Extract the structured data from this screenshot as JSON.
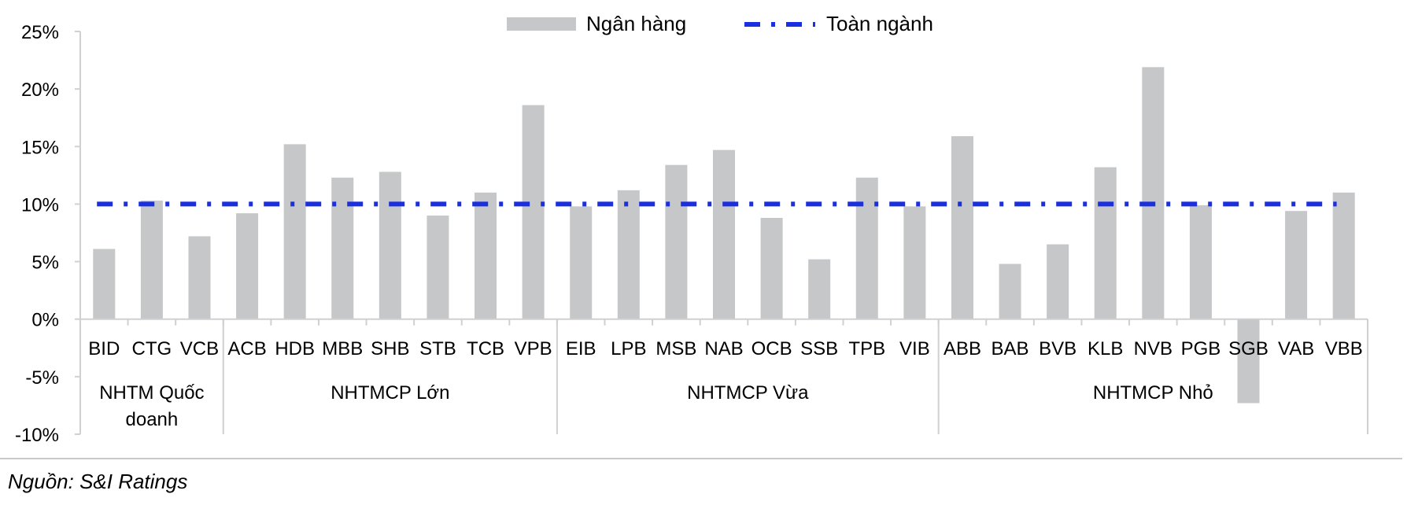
{
  "chart_data": {
    "type": "bar",
    "title": "",
    "xlabel": "",
    "ylabel": "",
    "ylim": [
      -10,
      25
    ],
    "yticks": [
      25,
      20,
      15,
      10,
      5,
      0,
      -5,
      -10
    ],
    "ytick_labels": [
      "25%",
      "20%",
      "15%",
      "10%",
      "5%",
      "0%",
      "-5%",
      "-10%"
    ],
    "categories": [
      "BID",
      "CTG",
      "VCB",
      "ACB",
      "HDB",
      "MBB",
      "SHB",
      "STB",
      "TCB",
      "VPB",
      "EIB",
      "LPB",
      "MSB",
      "NAB",
      "OCB",
      "SSB",
      "TPB",
      "VIB",
      "ABB",
      "BAB",
      "BVB",
      "KLB",
      "NVB",
      "PGB",
      "SGB",
      "VAB",
      "VBB"
    ],
    "groups": [
      {
        "lines": [
          "NHTM Quốc",
          "doanh"
        ],
        "start": 0,
        "end": 2
      },
      {
        "lines": [
          "NHTMCP Lớn"
        ],
        "start": 3,
        "end": 9
      },
      {
        "lines": [
          "NHTMCP Vừa"
        ],
        "start": 10,
        "end": 17
      },
      {
        "lines": [
          "NHTMCP Nhỏ"
        ],
        "start": 18,
        "end": 26
      }
    ],
    "series": [
      {
        "name": "Ngân hàng",
        "type": "bar",
        "color": "#c5c7c8",
        "values": [
          6.1,
          10.3,
          7.2,
          9.2,
          15.2,
          12.3,
          12.8,
          9.0,
          11.0,
          18.6,
          9.8,
          11.2,
          13.4,
          14.7,
          8.8,
          5.2,
          12.3,
          9.8,
          15.9,
          4.8,
          6.5,
          13.2,
          21.9,
          9.9,
          -7.3,
          9.4,
          11.0
        ]
      },
      {
        "name": "Toàn ngành",
        "type": "line",
        "style": "dash-dot",
        "color": "#1a2fe0",
        "value": 10.0
      }
    ],
    "legend": "top-center",
    "grid": false
  },
  "source": "Nguồn: S&I Ratings"
}
